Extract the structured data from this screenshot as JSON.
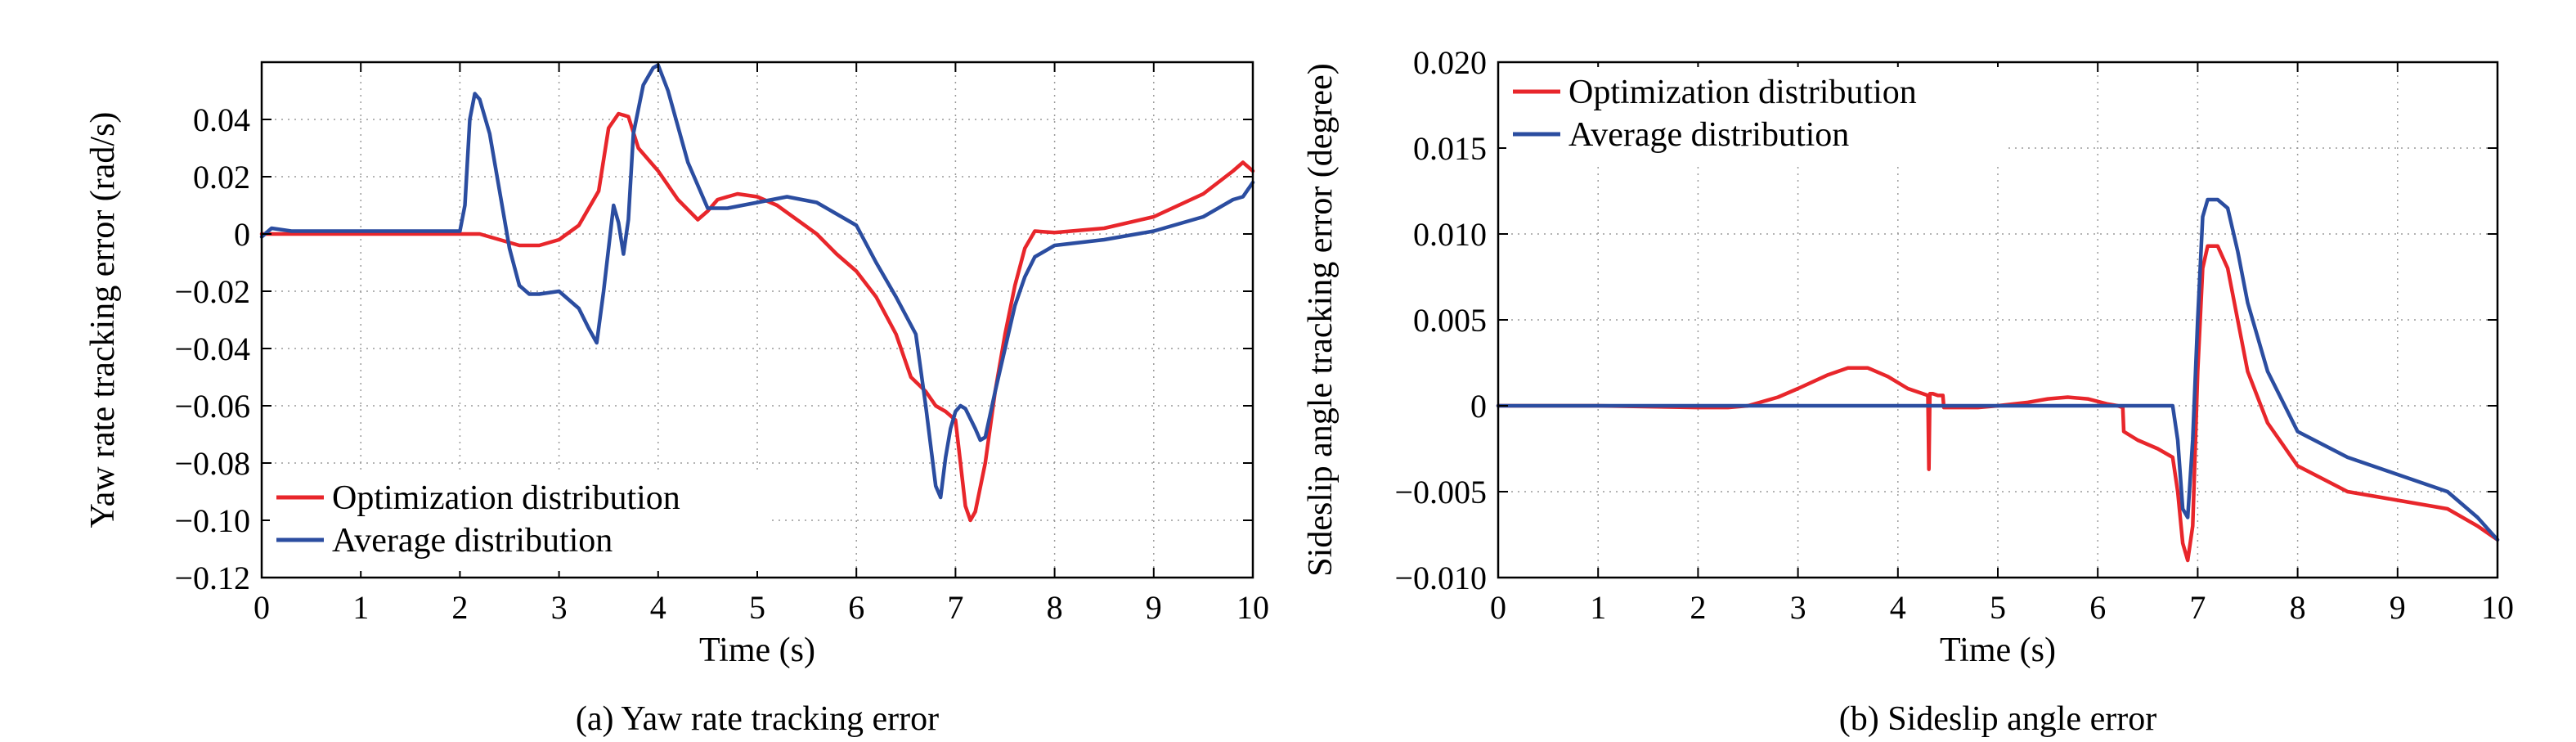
{
  "chart_data": [
    {
      "type": "line",
      "caption": "(a) Yaw rate tracking error",
      "xlabel": "Time (s)",
      "ylabel": "Yaw rate tracking error (rad/s)",
      "xlim": [
        0,
        10
      ],
      "ylim": [
        -0.12,
        0.06
      ],
      "xticks": [
        0,
        1,
        2,
        3,
        4,
        5,
        6,
        7,
        8,
        9,
        10
      ],
      "xtick_labels": [
        "0",
        "1",
        "2",
        "3",
        "4",
        "5",
        "6",
        "7",
        "8",
        "9",
        "10"
      ],
      "yticks": [
        -0.12,
        -0.1,
        -0.08,
        -0.06,
        -0.04,
        -0.02,
        0,
        0.02,
        0.04
      ],
      "ytick_labels": [
        "−0.12",
        "−0.10",
        "−0.08",
        "−0.06",
        "−0.04",
        "−0.02",
        "0",
        "0.02",
        "0.04"
      ],
      "grid": true,
      "legend_position": "bottom-left",
      "series": [
        {
          "name": "Optimization distribution",
          "color": "#e8262b",
          "x": [
            0,
            0.5,
            1,
            1.5,
            2,
            2.2,
            2.4,
            2.6,
            2.8,
            3.0,
            3.2,
            3.4,
            3.5,
            3.6,
            3.7,
            3.8,
            4.0,
            4.2,
            4.4,
            4.5,
            4.6,
            4.8,
            5.0,
            5.2,
            5.4,
            5.6,
            5.8,
            6.0,
            6.2,
            6.4,
            6.55,
            6.7,
            6.8,
            6.9,
            7.0,
            7.05,
            7.1,
            7.15,
            7.2,
            7.3,
            7.4,
            7.5,
            7.6,
            7.7,
            7.8,
            8.0,
            8.5,
            9.0,
            9.5,
            9.8,
            9.9,
            10.0
          ],
          "y": [
            0,
            0,
            0,
            0,
            0,
            0,
            -0.002,
            -0.004,
            -0.004,
            -0.002,
            0.003,
            0.015,
            0.037,
            0.042,
            0.041,
            0.03,
            0.022,
            0.012,
            0.005,
            0.008,
            0.012,
            0.014,
            0.013,
            0.01,
            0.005,
            0,
            -0.007,
            -0.013,
            -0.022,
            -0.035,
            -0.05,
            -0.055,
            -0.06,
            -0.062,
            -0.065,
            -0.08,
            -0.095,
            -0.1,
            -0.097,
            -0.08,
            -0.055,
            -0.035,
            -0.018,
            -0.005,
            0.001,
            0.0005,
            0.002,
            0.006,
            0.014,
            0.022,
            0.025,
            0.022
          ]
        },
        {
          "name": "Average distribution",
          "color": "#2b4da0",
          "x": [
            0,
            0.1,
            0.3,
            0.5,
            1,
            1.5,
            2,
            2.05,
            2.1,
            2.15,
            2.2,
            2.3,
            2.4,
            2.5,
            2.6,
            2.7,
            2.8,
            3.0,
            3.2,
            3.3,
            3.38,
            3.45,
            3.55,
            3.6,
            3.65,
            3.7,
            3.75,
            3.85,
            3.95,
            4.0,
            4.1,
            4.3,
            4.5,
            4.7,
            5.0,
            5.3,
            5.6,
            5.9,
            6.0,
            6.2,
            6.4,
            6.6,
            6.7,
            6.8,
            6.85,
            6.9,
            6.95,
            7.0,
            7.05,
            7.1,
            7.2,
            7.25,
            7.3,
            7.4,
            7.5,
            7.6,
            7.7,
            7.8,
            8.0,
            8.5,
            9.0,
            9.5,
            9.8,
            9.9,
            10.0
          ],
          "y": [
            -0.001,
            0.002,
            0.001,
            0.001,
            0.001,
            0.001,
            0.001,
            0.01,
            0.04,
            0.049,
            0.047,
            0.035,
            0.015,
            -0.005,
            -0.018,
            -0.021,
            -0.021,
            -0.02,
            -0.026,
            -0.033,
            -0.038,
            -0.02,
            0.01,
            0.004,
            -0.007,
            0.005,
            0.035,
            0.052,
            0.058,
            0.059,
            0.05,
            0.025,
            0.009,
            0.009,
            0.011,
            0.013,
            0.011,
            0.005,
            0.003,
            -0.01,
            -0.022,
            -0.035,
            -0.06,
            -0.088,
            -0.092,
            -0.078,
            -0.068,
            -0.062,
            -0.06,
            -0.061,
            -0.068,
            -0.072,
            -0.071,
            -0.055,
            -0.04,
            -0.025,
            -0.015,
            -0.008,
            -0.004,
            -0.002,
            0.001,
            0.006,
            0.012,
            0.013,
            0.018
          ]
        }
      ]
    },
    {
      "type": "line",
      "caption": "(b) Sideslip angle error",
      "xlabel": "Time (s)",
      "ylabel": "Sideslip angle tracking error (degree)",
      "xlim": [
        0,
        10
      ],
      "ylim": [
        -0.01,
        0.02
      ],
      "xticks": [
        0,
        1,
        2,
        3,
        4,
        5,
        6,
        7,
        8,
        9,
        10
      ],
      "xtick_labels": [
        "0",
        "1",
        "2",
        "3",
        "4",
        "5",
        "6",
        "7",
        "8",
        "9",
        "10"
      ],
      "yticks": [
        -0.01,
        -0.005,
        0,
        0.005,
        0.01,
        0.015,
        0.02
      ],
      "ytick_labels": [
        "−0.010",
        "−0.005",
        "0",
        "0.005",
        "0.010",
        "0.015",
        "0.020"
      ],
      "grid": true,
      "legend_position": "top-left",
      "series": [
        {
          "name": "Optimization distribution",
          "color": "#e8262b",
          "x": [
            0,
            1,
            2,
            2.3,
            2.5,
            2.8,
            3.0,
            3.3,
            3.5,
            3.7,
            3.9,
            4.1,
            4.25,
            4.3,
            4.31,
            4.32,
            4.35,
            4.4,
            4.45,
            4.46,
            4.5,
            4.8,
            5.0,
            5.3,
            5.5,
            5.7,
            5.9,
            6.1,
            6.2,
            6.25,
            6.26,
            6.4,
            6.6,
            6.75,
            6.8,
            6.85,
            6.9,
            6.95,
            7.0,
            7.05,
            7.1,
            7.2,
            7.3,
            7.4,
            7.5,
            7.7,
            8.0,
            8.5,
            9.0,
            9.5,
            9.8,
            10.0
          ],
          "y": [
            0,
            0,
            -0.0001,
            -0.0001,
            0,
            0.0005,
            0.001,
            0.0018,
            0.0022,
            0.0022,
            0.0017,
            0.001,
            0.0007,
            0.0006,
            -0.0037,
            0.0007,
            0.0007,
            0.0006,
            0.0006,
            -0.0001,
            -0.0001,
            -0.0001,
            0,
            0.0002,
            0.0004,
            0.0005,
            0.0004,
            0.0001,
            0,
            -0.0001,
            -0.0015,
            -0.002,
            -0.0025,
            -0.003,
            -0.005,
            -0.008,
            -0.009,
            -0.007,
            0.002,
            0.008,
            0.0093,
            0.0093,
            0.008,
            0.005,
            0.002,
            -0.001,
            -0.0035,
            -0.005,
            -0.0055,
            -0.006,
            -0.007,
            -0.0078
          ]
        },
        {
          "name": "Average distribution",
          "color": "#2b4da0",
          "x": [
            0,
            1,
            2,
            3,
            4,
            5,
            6,
            6.6,
            6.75,
            6.8,
            6.85,
            6.9,
            6.95,
            7.0,
            7.05,
            7.1,
            7.15,
            7.2,
            7.3,
            7.4,
            7.5,
            7.7,
            8.0,
            8.5,
            9.0,
            9.5,
            9.8,
            10.0
          ],
          "y": [
            0,
            0,
            0,
            0,
            0,
            0,
            0,
            0,
            0,
            -0.002,
            -0.006,
            -0.0065,
            -0.002,
            0.005,
            0.011,
            0.012,
            0.012,
            0.012,
            0.0115,
            0.009,
            0.006,
            0.002,
            -0.0015,
            -0.003,
            -0.004,
            -0.005,
            -0.0065,
            -0.0078
          ]
        }
      ]
    }
  ]
}
